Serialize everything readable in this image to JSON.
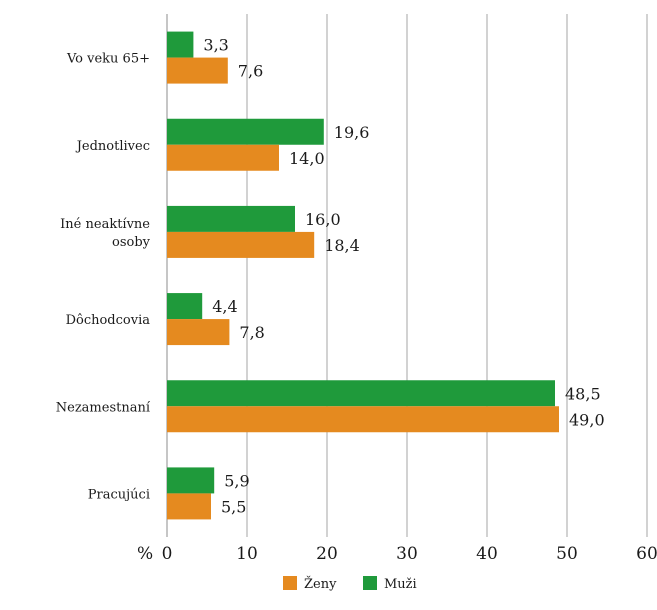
{
  "chart_data": {
    "type": "bar",
    "orientation": "horizontal",
    "categories": [
      "Vo veku 65+",
      "Jednotlivec",
      "Iné neaktívne osoby",
      "Dôchodcovia",
      "Nezamestnaní",
      "Pracujúci"
    ],
    "category_lines": [
      [
        "Vo veku 65+"
      ],
      [
        "Jednotlivec"
      ],
      [
        "Iné neaktívne",
        "osoby"
      ],
      [
        "Dôchodcovia"
      ],
      [
        "Nezamestnaní"
      ],
      [
        "Pracujúci"
      ]
    ],
    "series": [
      {
        "name": "Muži",
        "color": "#1f9a3b",
        "values": [
          3.3,
          19.6,
          16.0,
          4.4,
          48.5,
          5.9
        ],
        "labels": [
          "3,3",
          "19,6",
          "16,0",
          "4,4",
          "48,5",
          "5,9"
        ]
      },
      {
        "name": "Ženy",
        "color": "#e58a1f",
        "values": [
          7.6,
          14.0,
          18.4,
          7.8,
          49.0,
          5.5
        ],
        "labels": [
          "7,6",
          "14,0",
          "18,4",
          "7,8",
          "49,0",
          "5,5"
        ]
      }
    ],
    "legend_order": [
      "Ženy",
      "Muži"
    ],
    "legend_position": "bottom",
    "xlabel": "%",
    "xlim": [
      0,
      60
    ],
    "x_ticks": [
      0,
      10,
      20,
      30,
      40,
      50,
      60
    ],
    "grid": "vertical"
  }
}
